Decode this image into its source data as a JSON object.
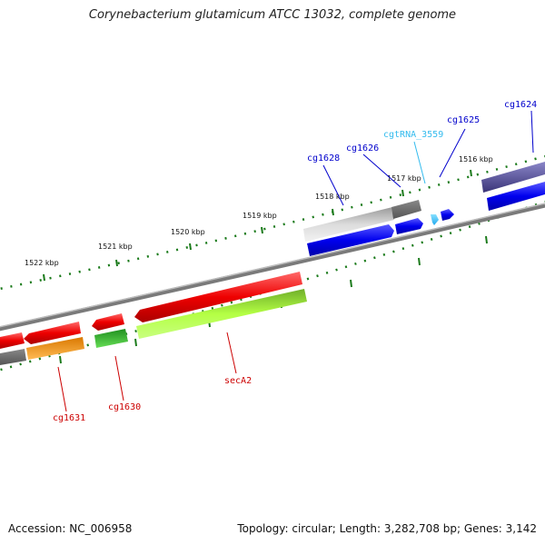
{
  "title": "Corynebacterium glutamicum ATCC 13032, complete genome",
  "footer": {
    "accession": "Accession: NC_006958",
    "summary": "Topology: circular; Length: 3,282,708 bp; Genes: 3,142"
  },
  "scale": {
    "kbp_labels": [
      "1516 kbp",
      "1517 kbp",
      "1518 kbp",
      "1519 kbp",
      "1520 kbp",
      "1521 kbp",
      "1522 kbp"
    ]
  },
  "gene_labels": {
    "cg1624": "cg1624",
    "cg1625": "cg1625",
    "cgtRNA_3559": "cgtRNA_3559",
    "cg1626": "cg1626",
    "cg1628": "cg1628",
    "secA2": "secA2",
    "cg1630": "cg1630",
    "cg1631": "cg1631"
  },
  "colors": {
    "label_forward": "#0000cc",
    "label_trna": "#33bbee",
    "label_reverse": "#cc0000",
    "tick": "#1a7a1a",
    "backbone": "#888888"
  }
}
